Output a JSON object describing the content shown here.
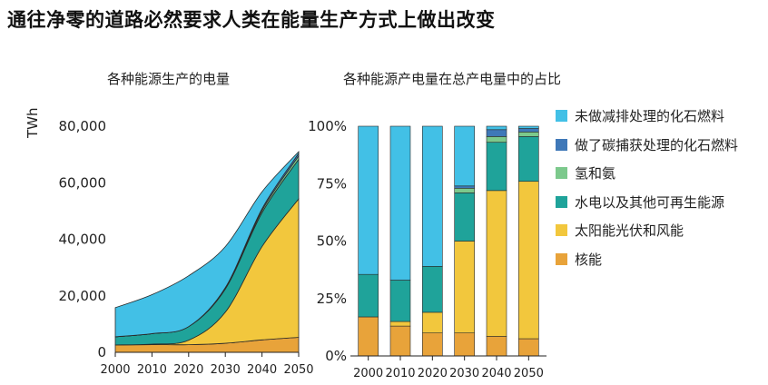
{
  "title": "通往净零的道路必然要求人类在能量生产方式上做出改变",
  "chart_data": [
    {
      "type": "area",
      "title": "各种能源生产的电量",
      "ylabel": "TWh",
      "x": [
        2000,
        2010,
        2020,
        2030,
        2040,
        2050
      ],
      "xticks": [
        "2000",
        "2010",
        "2020",
        "2030",
        "2040",
        "2050"
      ],
      "yticks": [
        "0",
        "20,000",
        "40,000",
        "60,000",
        "80,000"
      ],
      "ylim": [
        0,
        80000
      ],
      "series": [
        {
          "name": "核能",
          "color": "#e8a33a",
          "values": [
            2600,
            2700,
            2700,
            3200,
            4400,
            5300
          ]
        },
        {
          "name": "太阳能光伏和风能",
          "color": "#f2c73d",
          "values": [
            0,
            200,
            1600,
            11000,
            33000,
            49000
          ]
        },
        {
          "name": "水电以及其他可再生能源",
          "color": "#1fa39a",
          "values": [
            2900,
            3700,
            4800,
            8200,
            12000,
            14000
          ]
        },
        {
          "name": "氢和氨",
          "color": "#7cc98c",
          "values": [
            0,
            0,
            0,
            300,
            800,
            1200
          ]
        },
        {
          "name": "做了碳捕获处理的化石燃料",
          "color": "#3f78b8",
          "values": [
            0,
            0,
            0,
            200,
            600,
            900
          ]
        },
        {
          "name": "未做减排处理的化石燃料",
          "color": "#42c0e6",
          "values": [
            10300,
            13800,
            18000,
            14500,
            6000,
            600
          ]
        }
      ]
    },
    {
      "type": "bar",
      "title": "各种能源产电量在总产电量中的占比",
      "categories": [
        "2000",
        "2010",
        "2020",
        "2030",
        "2040",
        "2050"
      ],
      "yticks": [
        "0%",
        "25%",
        "50%",
        "75%",
        "100%"
      ],
      "ylim": [
        0,
        100
      ],
      "series": [
        {
          "name": "核能",
          "color": "#e8a33a",
          "values": [
            17,
            13,
            10,
            10,
            8.5,
            7.5
          ]
        },
        {
          "name": "太阳能光伏和风能",
          "color": "#f2c73d",
          "values": [
            0,
            2,
            9,
            40,
            63.5,
            68.5
          ]
        },
        {
          "name": "水电以及其他可再生能源",
          "color": "#1fa39a",
          "values": [
            18.5,
            18,
            20,
            21,
            21,
            19.5
          ]
        },
        {
          "name": "氢和氨",
          "color": "#7cc98c",
          "values": [
            0,
            0,
            0,
            2,
            2.5,
            2
          ]
        },
        {
          "name": "做了碳捕获处理的化石燃料",
          "color": "#3f78b8",
          "values": [
            0,
            0,
            0,
            1,
            3,
            1.5
          ]
        },
        {
          "name": "未做减排处理的化石燃料",
          "color": "#42c0e6",
          "values": [
            64.5,
            67,
            61,
            26,
            1.5,
            1
          ]
        }
      ]
    }
  ],
  "legend": [
    {
      "label": "未做减排处理的化石燃料",
      "color": "#42c0e6"
    },
    {
      "label": "做了碳捕获处理的化石燃料",
      "color": "#3f78b8"
    },
    {
      "label": "氢和氨",
      "color": "#7cc98c"
    },
    {
      "label": "水电以及其他可再生能源",
      "color": "#1fa39a"
    },
    {
      "label": "太阳能光伏和风能",
      "color": "#f2c73d"
    },
    {
      "label": "核能",
      "color": "#e8a33a"
    }
  ]
}
